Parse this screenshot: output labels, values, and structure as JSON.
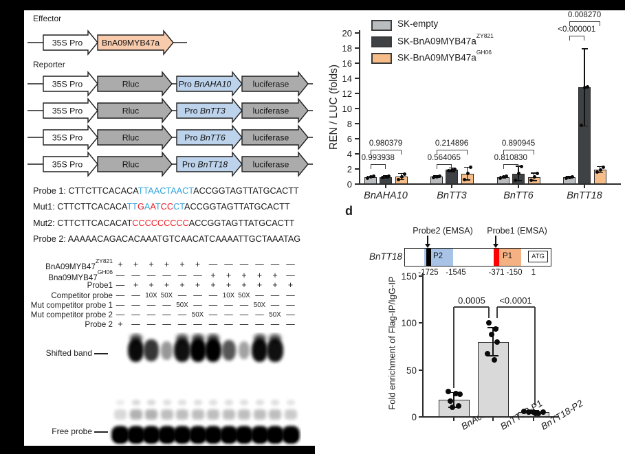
{
  "panel_a": {
    "effector_label": "Effector",
    "reporter_label": "Reporter",
    "p35s": "35S Pro",
    "effector_gene": "BnA09MYB47a",
    "rluc": "Rluc",
    "luciferase": "luciferase",
    "promoter_prefix": "Pro ",
    "reporter_promoters": [
      "BnAHA10",
      "BnTT3",
      "BnTT6",
      "BnTT18"
    ],
    "colors": {
      "effector_fill": "#f8cbad",
      "gene_gray": "#ababab",
      "promoter_blue": "#bdd3ec",
      "white": "#ffffff",
      "outline": "#1f1f1f"
    }
  },
  "sequences": {
    "color_map": {
      "k": "#1a1a1a",
      "b": "#2fa3dc",
      "r": "#ec1c24"
    },
    "lines": [
      {
        "segments": [
          [
            "Probe 1: CTTCTTCACACA",
            "k"
          ],
          [
            "TTAACTAACT",
            "b"
          ],
          [
            "ACCGGTAGTTATGCACTT",
            "k"
          ]
        ]
      },
      {
        "segments": [
          [
            "Mut1: CTTCTTCACACA",
            "k"
          ],
          [
            "TT",
            "b"
          ],
          [
            "G",
            "r"
          ],
          [
            "A",
            "b"
          ],
          [
            "A",
            "r"
          ],
          [
            "T",
            "b"
          ],
          [
            "CC",
            "r"
          ],
          [
            "CT",
            "b"
          ],
          [
            "ACCGGTAGTTATGCACTT",
            "k"
          ]
        ]
      },
      {
        "segments": [
          [
            "Mut2: CTTCTTCACACAT",
            "k"
          ],
          [
            "CCCCCCCCC",
            "r"
          ],
          [
            "ACCGGTAGTTATGCACTT",
            "k"
          ]
        ]
      },
      {
        "segments": [
          [
            "Probe 2: AAAAACAGACACAAATGTCAACATCAAAATTGCTAAATAG",
            "k"
          ]
        ]
      }
    ]
  },
  "emsa": {
    "rows": [
      {
        "label": "BnA09MYB47",
        "sup": "ZY821",
        "cells": [
          "+",
          "+",
          "+",
          "+",
          "+",
          "+",
          "—",
          "—",
          "—",
          "—",
          "—",
          "—"
        ]
      },
      {
        "label": "Bna09MYB47",
        "sup": "GH06",
        "cells": [
          "—",
          "—",
          "—",
          "—",
          "—",
          "—",
          "+",
          "+",
          "+",
          "+",
          "+",
          "—"
        ]
      },
      {
        "label": "Probe1",
        "sup": "",
        "cells": [
          "—",
          "+",
          "+",
          "+",
          "+",
          "+",
          "+",
          "+",
          "+",
          "+",
          "+",
          "+"
        ]
      },
      {
        "label": "Competitor probe",
        "sup": "",
        "cells": [
          "—",
          "—",
          "10X",
          "50X",
          "—",
          "—",
          "—",
          "10X",
          "50X",
          "—",
          "—",
          "—"
        ]
      },
      {
        "label": "Mut competitor probe 1",
        "sup": "",
        "cells": [
          "—",
          "—",
          "—",
          "—",
          "50X",
          "—",
          "—",
          "—",
          "—",
          "50X",
          "—",
          "—"
        ]
      },
      {
        "label": "Mut competitor probe 2",
        "sup": "",
        "cells": [
          "—",
          "—",
          "—",
          "—",
          "—",
          "50X",
          "—",
          "—",
          "—",
          "—",
          "50X",
          "—"
        ]
      },
      {
        "label": "Probe 2",
        "sup": "",
        "cells": [
          "+",
          "—",
          "—",
          "—",
          "—",
          "—",
          "—",
          "—",
          "—",
          "—",
          "—",
          "—"
        ]
      }
    ],
    "gel": {
      "shifted_label": "Shifted band",
      "free_label": "Free probe",
      "shifted_intensity": [
        0,
        0.95,
        0.75,
        0.3,
        0.92,
        1,
        1,
        0.6,
        0.25,
        0.95,
        0.92,
        0
      ],
      "free_intensity": [
        1,
        1,
        1,
        1,
        1,
        1,
        1,
        1,
        1,
        1,
        1,
        1
      ],
      "smear_intensity": [
        0.15,
        0.3,
        0.3,
        0.25,
        0.25,
        0.25,
        0.25,
        0.25,
        0.25,
        0.25,
        0.25,
        0.2
      ]
    }
  },
  "panel_c": {
    "legend": [
      {
        "text": "SK-empty",
        "sup": "",
        "color": "#b9bdc0"
      },
      {
        "text": "SK-BnA09MYB47a",
        "sup": "ZY821",
        "color": "#3e4245"
      },
      {
        "text": "SK-BnA09MYB47a",
        "sup": "GH06",
        "color": "#f6bd88"
      }
    ]
  },
  "panel_d": {
    "label": "d",
    "gene": "BnTT18",
    "probe2_label": "Probe2 (EMSA)",
    "probe1_label": "Probe1 (EMSA)",
    "p2": "P2",
    "p1": "P1",
    "atg": "ATG",
    "coords": [
      "-1725",
      "-1545",
      "-371",
      "-150",
      "1"
    ],
    "colors": {
      "p2_fill": "#a9c3e6",
      "p1_fill": "#f4b183",
      "probe2_mark": "#000000",
      "probe1_mark": "#ff0000"
    }
  },
  "chart_data": [
    {
      "id": "dual_luciferase_assay",
      "type": "bar",
      "ylabel": "REN / LUC (folds)",
      "ylim": [
        0,
        20
      ],
      "ytick_step": 2,
      "grid": false,
      "legend_position": "top-left",
      "categories": [
        "BnAHA10",
        "BnTT3",
        "BnTT6",
        "BnTT18"
      ],
      "series": [
        {
          "name": "SK-empty",
          "color": "#b9bdc0",
          "values": [
            0.95,
            1.0,
            0.95,
            0.9
          ],
          "errors": [
            0.1,
            0.1,
            0.12,
            0.1
          ],
          "points": [
            [
              0.8,
              0.95,
              1.05
            ],
            [
              0.9,
              1.0,
              1.05
            ],
            [
              0.8,
              0.95,
              1.05
            ],
            [
              0.8,
              0.9,
              1.0
            ]
          ]
        },
        {
          "name": "SK-BnA09MYB47a ZY821",
          "color": "#3e4245",
          "values": [
            0.95,
            1.9,
            1.4,
            12.8
          ],
          "errors": [
            0.15,
            0.25,
            0.95,
            5.1
          ],
          "points": [
            [
              0.85,
              0.95,
              1.05
            ],
            [
              1.75,
              1.9,
              2.0
            ],
            [
              0.5,
              1.4,
              2.3
            ],
            [
              7.8,
              12.8,
              12.9
            ]
          ]
        },
        {
          "name": "SK-BnA09MYB47a GH06",
          "color": "#f6bd88",
          "values": [
            1.0,
            1.4,
            0.95,
            1.9
          ],
          "errors": [
            0.4,
            0.85,
            0.5,
            0.4
          ],
          "points": [
            [
              0.6,
              1.0,
              1.35
            ],
            [
              0.6,
              1.4,
              2.2
            ],
            [
              0.5,
              0.95,
              1.4
            ],
            [
              1.6,
              1.9,
              2.2
            ]
          ]
        }
      ],
      "pvalues": [
        {
          "outer": "0.980379",
          "inner": "0.993938"
        },
        {
          "outer": "0.214896",
          "inner": "0.564065"
        },
        {
          "outer": "0.890945",
          "inner": "0.810830"
        },
        {
          "outer": "0.008270",
          "inner": "<0.000001"
        }
      ]
    },
    {
      "id": "chip_qpcr_enrichment",
      "type": "bar",
      "ylabel": "Fold enrichment of Flag-IP/IgG-IP",
      "ylim": [
        0,
        150
      ],
      "yticks": [
        0,
        50,
        100,
        150
      ],
      "grid": false,
      "bar_color": "#d9d9d9",
      "categories": [
        "BnActin7",
        "BnTT18-P1",
        "BnTT18-P2"
      ],
      "values": [
        18,
        80,
        5
      ],
      "errors": [
        8,
        15,
        1.5
      ],
      "points": [
        [
          27,
          25,
          24,
          17,
          12,
          10
        ],
        [
          100,
          94,
          88,
          80,
          67,
          61
        ],
        [
          6,
          5,
          5,
          4,
          5,
          4
        ]
      ],
      "pvalues": [
        {
          "between": [
            "BnActin7",
            "BnTT18-P1"
          ],
          "label": "0.0005"
        },
        {
          "between": [
            "BnTT18-P1",
            "BnTT18-P2"
          ],
          "label": "<0.0001"
        }
      ]
    }
  ]
}
